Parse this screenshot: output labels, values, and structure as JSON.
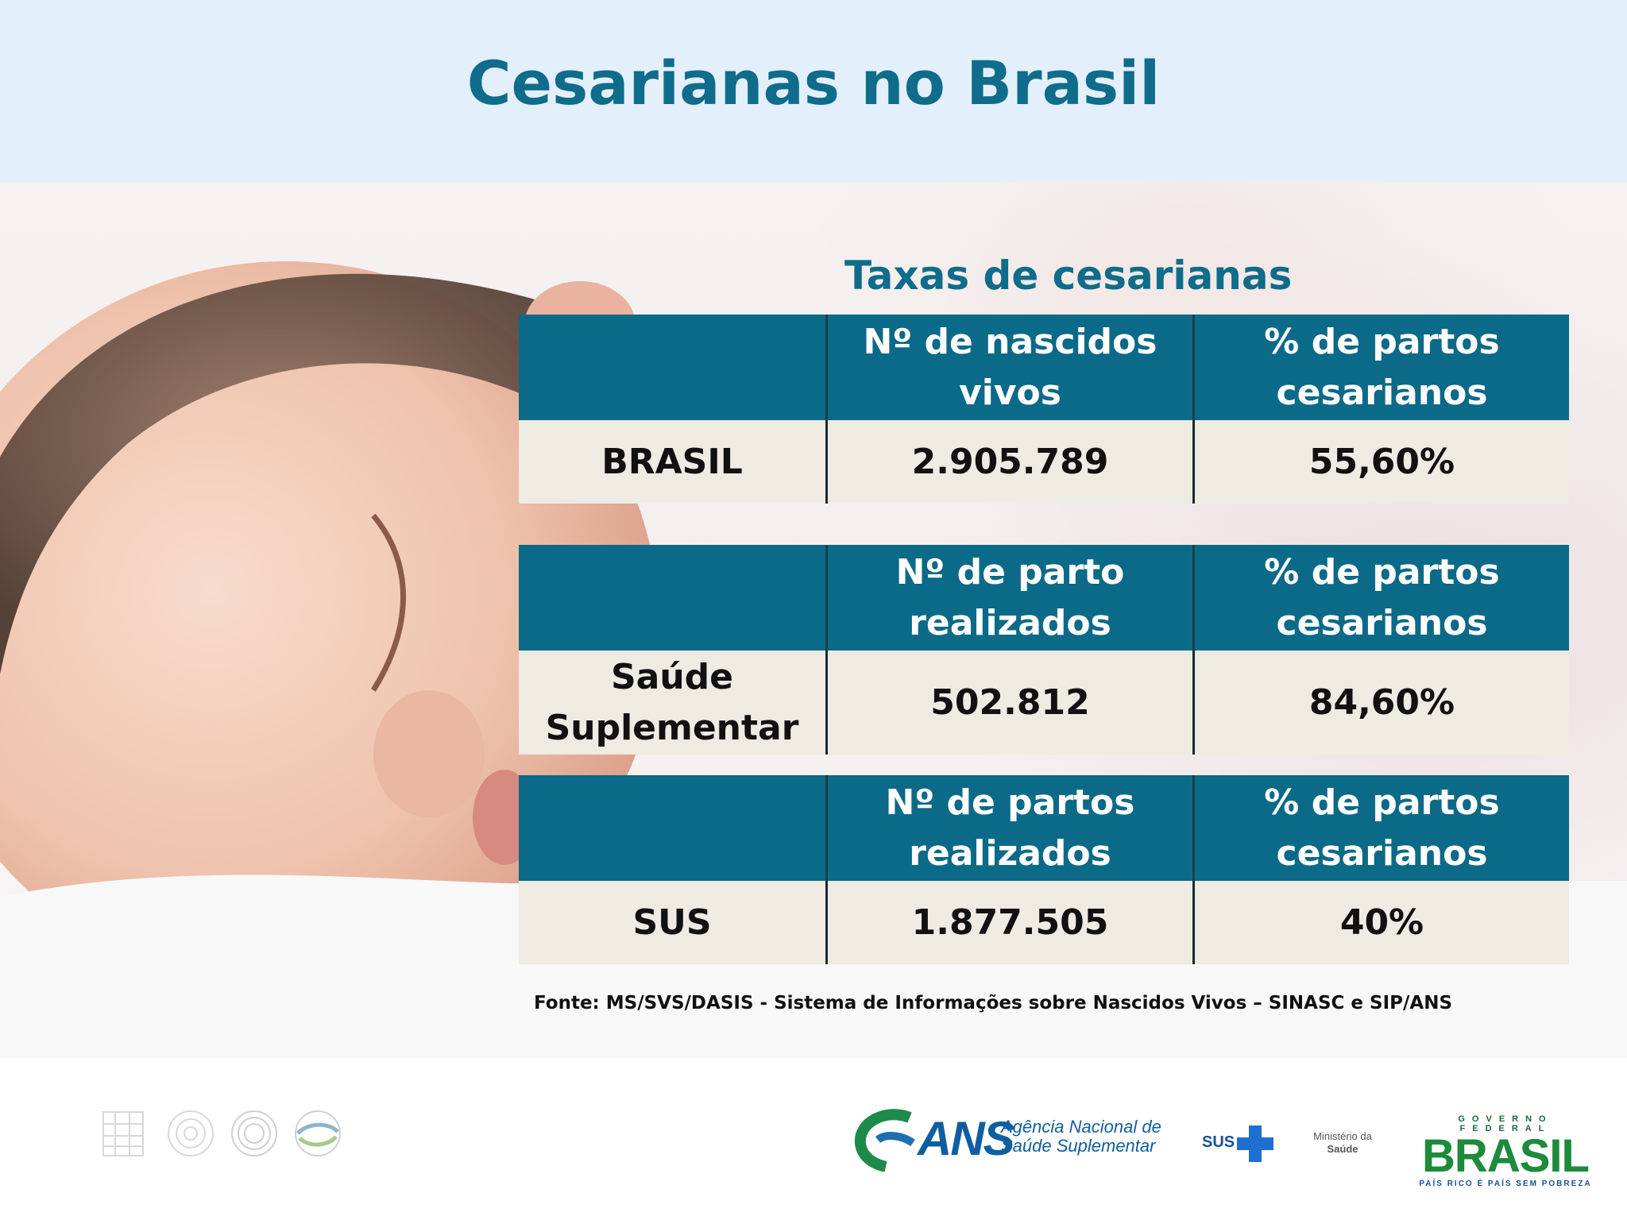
{
  "header": {
    "title": "Cesarianas no Brasil"
  },
  "section": {
    "subtitle": "Taxas de cesarianas"
  },
  "tables": [
    {
      "headers": [
        "",
        "Nº de nascidos vivos",
        "% de partos cesarianos"
      ],
      "row": {
        "label": "BRASIL",
        "count": "2.905.789",
        "percent": "55,60%"
      }
    },
    {
      "headers": [
        "",
        "Nº de parto realizados",
        "% de partos cesarianos"
      ],
      "row": {
        "label": "Saúde Suplementar",
        "count": "502.812",
        "percent": "84,60%"
      }
    },
    {
      "headers": [
        "",
        "Nº de partos realizados",
        "% de partos cesarianos"
      ],
      "row": {
        "label": "SUS",
        "count": "1.877.505",
        "percent": "40%"
      }
    }
  ],
  "source": "Fonte: MS/SVS/DASIS - Sistema de Informações sobre Nascidos Vivos – SINASC e SIP/ANS",
  "footer": {
    "ans": {
      "acronym": "ANS",
      "name_line1": "Agência Nacional de",
      "name_line2": "Saúde Suplementar"
    },
    "sus": {
      "text": "SUS"
    },
    "ministerio": {
      "line1": "Ministério da",
      "line2": "Saúde"
    },
    "governo": {
      "top": "GOVERNO FEDERAL",
      "main": "BRASIL",
      "bottom": "PAÍS RICO É PAÍS SEM POBREZA"
    }
  },
  "colors": {
    "header_bg": "#e3effb",
    "title": "#0f6c8a",
    "table_header": "#0b6a87",
    "table_row": "#eeebe3"
  }
}
